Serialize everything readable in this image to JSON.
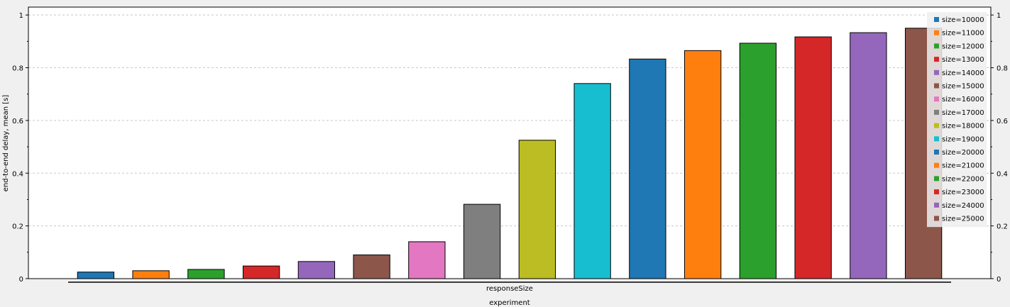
{
  "chart_data": {
    "type": "bar",
    "ylabel": "end-to-end delay, mean [s]",
    "xlabel": "responseSize",
    "group_label": "experiment",
    "ylim": [
      0,
      1.03
    ],
    "yticks": [
      0,
      0.2,
      0.4,
      0.6,
      0.8,
      1
    ],
    "ytick_labels": [
      "0",
      "0.2",
      "0.4",
      "0.6",
      "0.8",
      "1"
    ],
    "grid": true,
    "legend_position": "top-right",
    "series": [
      {
        "name": "size=10000",
        "value": 0.025,
        "color": "#1f77b4"
      },
      {
        "name": "size=11000",
        "value": 0.03,
        "color": "#ff7f0e"
      },
      {
        "name": "size=12000",
        "value": 0.035,
        "color": "#2ca02c"
      },
      {
        "name": "size=13000",
        "value": 0.048,
        "color": "#d62728"
      },
      {
        "name": "size=14000",
        "value": 0.065,
        "color": "#9467bd"
      },
      {
        "name": "size=15000",
        "value": 0.09,
        "color": "#8c564b"
      },
      {
        "name": "size=16000",
        "value": 0.14,
        "color": "#e377c2"
      },
      {
        "name": "size=17000",
        "value": 0.282,
        "color": "#7f7f7f"
      },
      {
        "name": "size=18000",
        "value": 0.525,
        "color": "#bcbd22"
      },
      {
        "name": "size=19000",
        "value": 0.74,
        "color": "#17becf"
      },
      {
        "name": "size=20000",
        "value": 0.833,
        "color": "#1f77b4"
      },
      {
        "name": "size=21000",
        "value": 0.865,
        "color": "#ff7f0e"
      },
      {
        "name": "size=22000",
        "value": 0.893,
        "color": "#2ca02c"
      },
      {
        "name": "size=23000",
        "value": 0.917,
        "color": "#d62728"
      },
      {
        "name": "size=24000",
        "value": 0.933,
        "color": "#9467bd"
      },
      {
        "name": "size=25000",
        "value": 0.95,
        "color": "#8c564b"
      }
    ]
  }
}
